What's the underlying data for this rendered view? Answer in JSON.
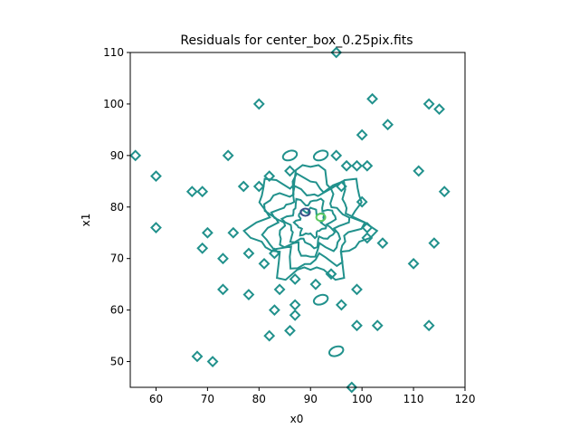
{
  "chart_data": {
    "type": "contour",
    "title": "Residuals for center_box_0.25pix.fits",
    "xlabel": "x0",
    "ylabel": "x1",
    "xlim": [
      55,
      120
    ],
    "ylim": [
      45,
      110
    ],
    "xticks": [
      60,
      70,
      80,
      90,
      100,
      110,
      120
    ],
    "yticks": [
      50,
      60,
      70,
      80,
      90,
      100,
      110
    ],
    "grid": false,
    "legend": "none",
    "colors": {
      "main": "#21918c",
      "dark": "#3b528b",
      "light": "#5ec962"
    },
    "isolated_contours": [
      {
        "x": 56,
        "y": 90
      },
      {
        "x": 60,
        "y": 86
      },
      {
        "x": 60,
        "y": 76
      },
      {
        "x": 67,
        "y": 83
      },
      {
        "x": 69,
        "y": 83
      },
      {
        "x": 70,
        "y": 75
      },
      {
        "x": 69,
        "y": 72
      },
      {
        "x": 73,
        "y": 70
      },
      {
        "x": 73,
        "y": 64
      },
      {
        "x": 74,
        "y": 90
      },
      {
        "x": 75,
        "y": 75
      },
      {
        "x": 77,
        "y": 84
      },
      {
        "x": 78,
        "y": 71
      },
      {
        "x": 78,
        "y": 63
      },
      {
        "x": 80,
        "y": 100
      },
      {
        "x": 80,
        "y": 84
      },
      {
        "x": 81,
        "y": 69
      },
      {
        "x": 82,
        "y": 86
      },
      {
        "x": 83,
        "y": 71
      },
      {
        "x": 83,
        "y": 60
      },
      {
        "x": 84,
        "y": 64
      },
      {
        "x": 86,
        "y": 87
      },
      {
        "x": 86,
        "y": 56
      },
      {
        "x": 87,
        "y": 66
      },
      {
        "x": 87,
        "y": 61
      },
      {
        "x": 87,
        "y": 59
      },
      {
        "x": 91,
        "y": 65
      },
      {
        "x": 94,
        "y": 67
      },
      {
        "x": 95,
        "y": 110
      },
      {
        "x": 95,
        "y": 90
      },
      {
        "x": 96,
        "y": 84
      },
      {
        "x": 96,
        "y": 61
      },
      {
        "x": 97,
        "y": 88
      },
      {
        "x": 98,
        "y": 45
      },
      {
        "x": 99,
        "y": 88
      },
      {
        "x": 99,
        "y": 64
      },
      {
        "x": 99,
        "y": 57
      },
      {
        "x": 100,
        "y": 94
      },
      {
        "x": 100,
        "y": 81
      },
      {
        "x": 101,
        "y": 88
      },
      {
        "x": 101,
        "y": 76
      },
      {
        "x": 101,
        "y": 74
      },
      {
        "x": 102,
        "y": 101
      },
      {
        "x": 103,
        "y": 57
      },
      {
        "x": 104,
        "y": 73
      },
      {
        "x": 105,
        "y": 96
      },
      {
        "x": 110,
        "y": 69
      },
      {
        "x": 111,
        "y": 87
      },
      {
        "x": 113,
        "y": 100
      },
      {
        "x": 113,
        "y": 57
      },
      {
        "x": 114,
        "y": 73
      },
      {
        "x": 115,
        "y": 99
      },
      {
        "x": 116,
        "y": 83
      },
      {
        "x": 68,
        "y": 51
      },
      {
        "x": 71,
        "y": 50
      },
      {
        "x": 82,
        "y": 55
      }
    ],
    "elongated_contours": [
      {
        "x": 86,
        "y": 90
      },
      {
        "x": 92,
        "y": 90
      },
      {
        "x": 92,
        "y": 62
      },
      {
        "x": 95,
        "y": 52
      }
    ],
    "central_core": {
      "center_x": 90,
      "center_y": 77,
      "min_x": 77,
      "max_x": 98,
      "min_y": 67,
      "max_y": 87
    },
    "dark_contour": {
      "x": 89,
      "y": 79
    },
    "light_contour": {
      "x": 92,
      "y": 78
    }
  }
}
